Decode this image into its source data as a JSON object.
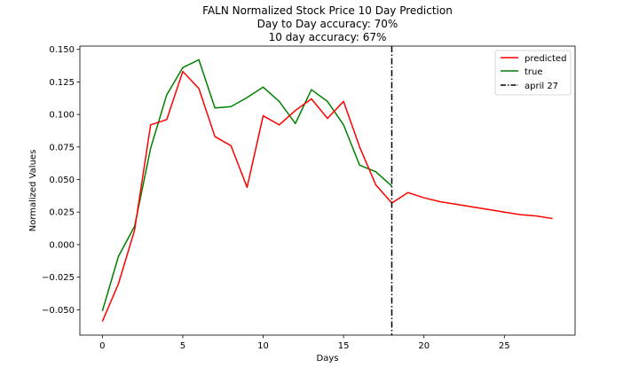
{
  "chart_data": {
    "type": "line",
    "title_lines": [
      "FALN Normalized Stock Price 10 Day Prediction",
      "Day to Day accuracy: 70%",
      "10 day accuracy: 67%"
    ],
    "xlabel": "Days",
    "ylabel": "Normalized Values",
    "xlim": [
      -1.4,
      29.4
    ],
    "ylim": [
      -0.0695,
      0.1525
    ],
    "x_ticks": [
      0,
      5,
      10,
      15,
      20,
      25
    ],
    "x_tick_labels": [
      "0",
      "5",
      "10",
      "15",
      "20",
      "25"
    ],
    "y_ticks": [
      -0.05,
      -0.025,
      0.0,
      0.025,
      0.05,
      0.075,
      0.1,
      0.125,
      0.15
    ],
    "y_tick_labels": [
      "−0.050",
      "−0.025",
      "0.000",
      "0.025",
      "0.050",
      "0.075",
      "0.100",
      "0.125",
      "0.150"
    ],
    "grid": false,
    "legend_position": "top-right",
    "series": [
      {
        "name": "predicted",
        "color": "#ff0000",
        "x": [
          0,
          1,
          2,
          3,
          4,
          5,
          6,
          7,
          8,
          9,
          10,
          11,
          12,
          13,
          14,
          15,
          16,
          17,
          18,
          19,
          20,
          21,
          22,
          23,
          24,
          25,
          26,
          27,
          28
        ],
        "y": [
          -0.059,
          -0.03,
          0.011,
          0.092,
          0.096,
          0.133,
          0.12,
          0.083,
          0.076,
          0.044,
          0.099,
          0.092,
          0.103,
          0.112,
          0.097,
          0.11,
          0.075,
          0.046,
          0.032,
          0.04,
          0.036,
          0.033,
          0.031,
          0.029,
          0.027,
          0.025,
          0.023,
          0.022,
          0.02
        ]
      },
      {
        "name": "true",
        "color": "#008000",
        "x": [
          0,
          1,
          2,
          3,
          4,
          5,
          6,
          7,
          8,
          9,
          10,
          11,
          12,
          13,
          14,
          15,
          16,
          17,
          18
        ],
        "y": [
          -0.051,
          -0.009,
          0.014,
          0.074,
          0.115,
          0.136,
          0.142,
          0.105,
          0.106,
          0.113,
          0.121,
          0.11,
          0.093,
          0.119,
          0.11,
          0.092,
          0.061,
          0.056,
          0.045
        ]
      }
    ],
    "vline": {
      "name": "april 27",
      "x": 18,
      "color": "#000000",
      "style": "dashdot"
    }
  }
}
